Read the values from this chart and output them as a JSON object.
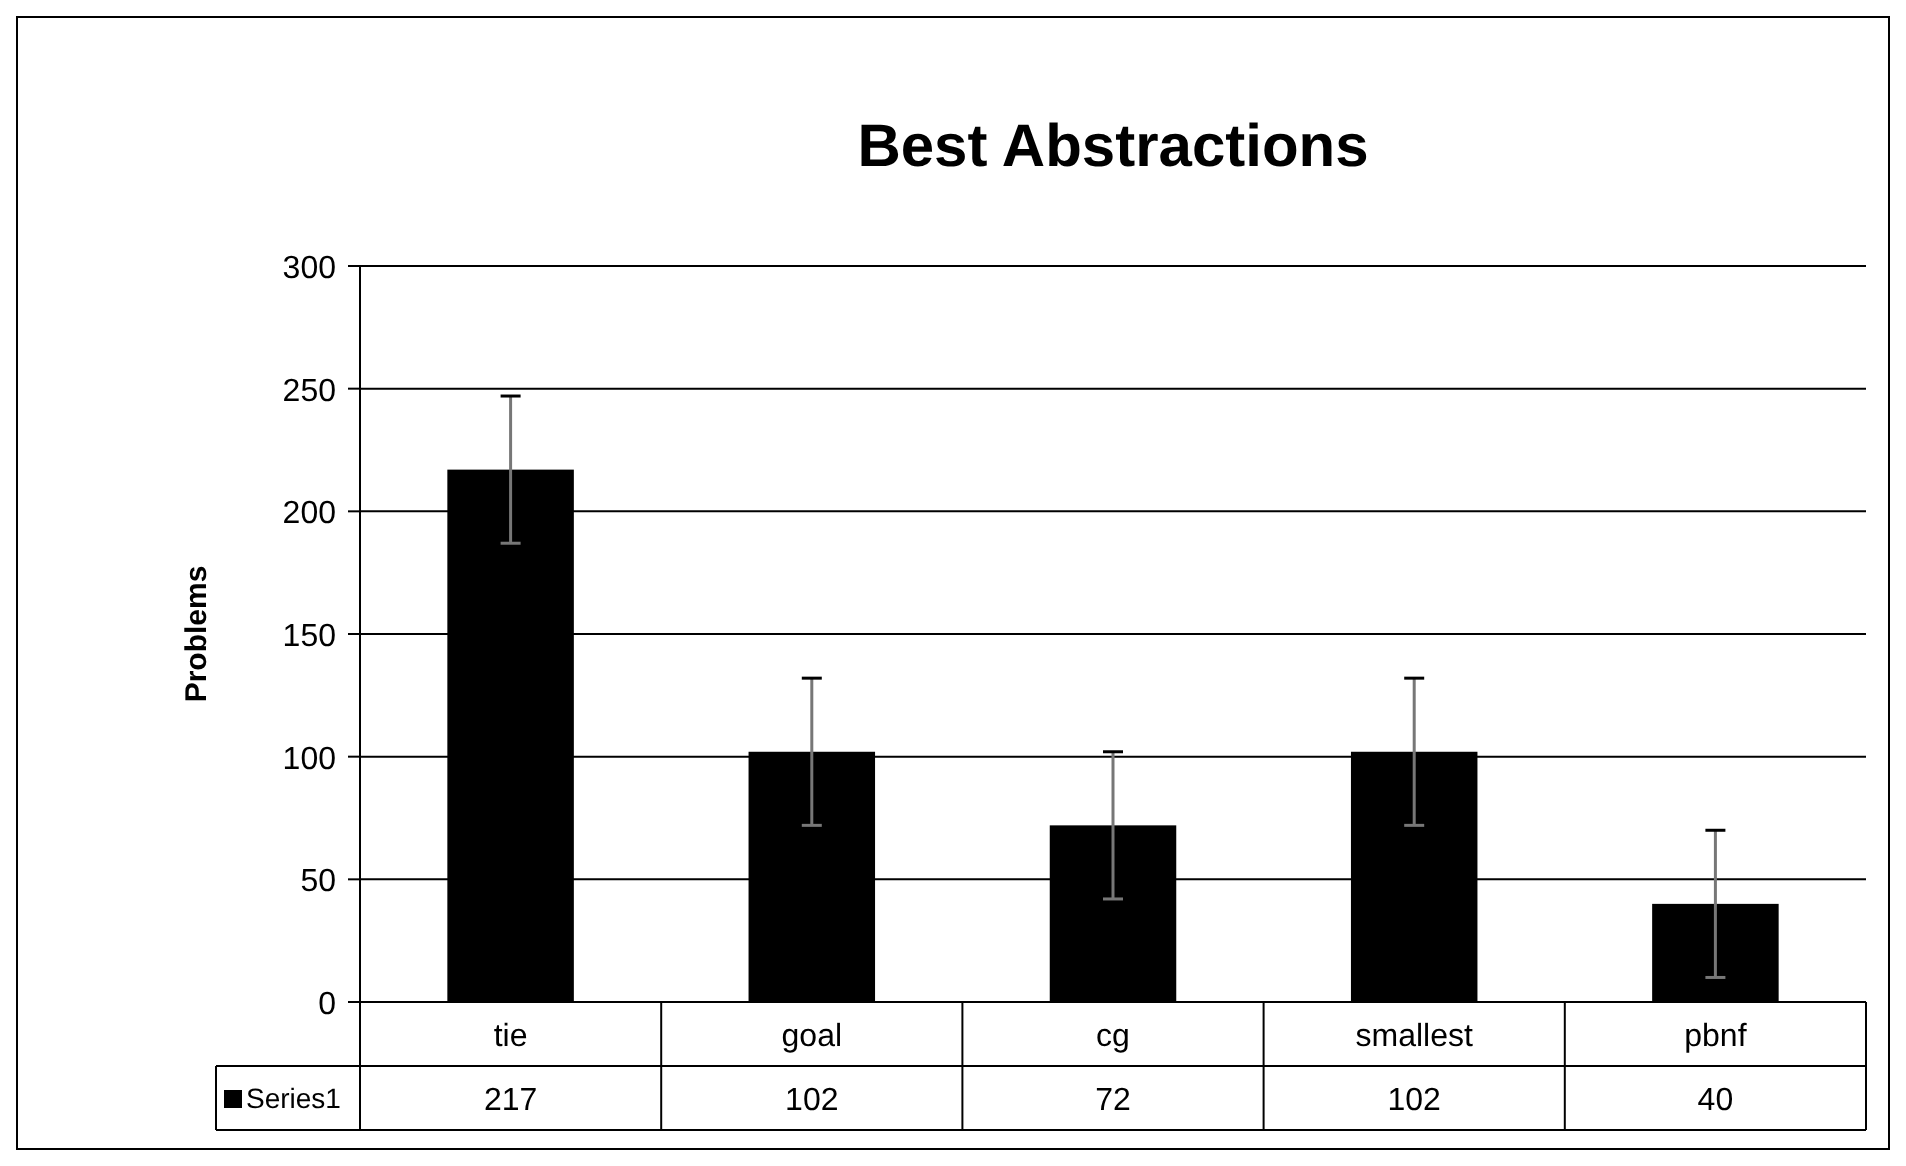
{
  "chart_data": {
    "type": "bar",
    "title": "Best Abstractions",
    "ylabel": "Problems",
    "categories": [
      "tie",
      "goal",
      "cg",
      "smallest",
      "pbnf"
    ],
    "series": [
      {
        "name": "Series1",
        "color": "#000000",
        "values": [
          217,
          102,
          72,
          102,
          40
        ],
        "errors": [
          30,
          30,
          30,
          30,
          30
        ]
      }
    ],
    "ylim": [
      0,
      300
    ],
    "yticks": [
      0,
      50,
      100,
      150,
      200,
      250,
      300
    ],
    "grid": "y",
    "data_labels": true
  }
}
